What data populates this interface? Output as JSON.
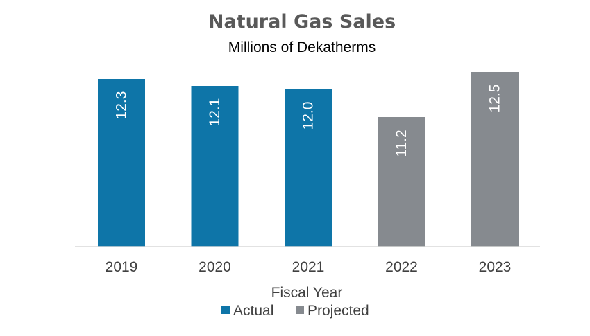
{
  "chart_data": {
    "type": "bar",
    "title": "Natural Gas Sales",
    "subtitle": "Millions of Dekatherms",
    "xlabel": "Fiscal Year",
    "ylabel": "",
    "categories": [
      "2019",
      "2020",
      "2021",
      "2022",
      "2023"
    ],
    "values": [
      12.3,
      12.1,
      12.0,
      11.2,
      12.5
    ],
    "value_labels": [
      "12.3",
      "12.1",
      "12.0",
      "11.2",
      "12.5"
    ],
    "bar_series": [
      "Actual",
      "Actual",
      "Actual",
      "Projected",
      "Projected"
    ],
    "series": [
      {
        "name": "Actual",
        "color": "#0e75a8"
      },
      {
        "name": "Projected",
        "color": "#868a8f"
      }
    ],
    "legend_position": "bottom",
    "grid": false
  }
}
